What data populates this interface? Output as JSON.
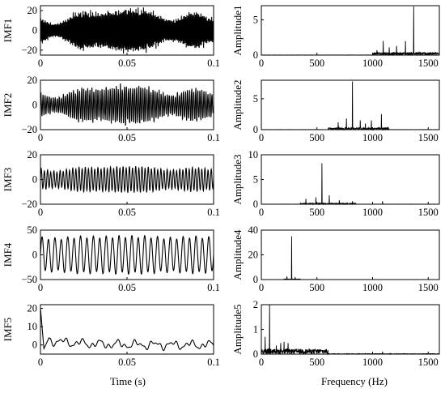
{
  "chart_data": [
    {
      "type": "line",
      "id": "imf1",
      "ylabel": "IMF1",
      "xlim": [
        0,
        0.1
      ],
      "ylim": [
        -25,
        25
      ],
      "xticks": [
        "0",
        "0.05",
        "0.1"
      ],
      "xtick_values": [
        0,
        0.05,
        0.1
      ],
      "yticks": [
        "20",
        "0",
        "−20"
      ],
      "ytick_values": [
        20,
        0,
        -20
      ],
      "signal": {
        "amplitude": 20,
        "cycles": 160,
        "modulation": 0.7,
        "dense": true
      },
      "series": [
        {
          "values": []
        }
      ]
    },
    {
      "type": "line",
      "id": "amp1",
      "ylabel": "Amplitude1",
      "xlim": [
        0,
        1600
      ],
      "ylim": [
        0,
        7
      ],
      "xticks": [
        "0",
        "500",
        "1000",
        "1500"
      ],
      "xtick_values": [
        0,
        500,
        1000,
        1500
      ],
      "yticks": [
        "5",
        "0"
      ],
      "ytick_values": [
        5,
        0
      ],
      "series": [
        {
          "peaks": [
            [
              1370,
              6.9
            ],
            [
              1095,
              2.0
            ],
            [
              1295,
              2.0
            ],
            [
              1215,
              1.3
            ],
            [
              1150,
              1.1
            ],
            [
              1040,
              0.7
            ]
          ],
          "floor": [
            1000,
            1600,
            0.4
          ]
        }
      ]
    },
    {
      "type": "line",
      "id": "imf2",
      "ylabel": "IMF2",
      "xlim": [
        0,
        0.1
      ],
      "ylim": [
        -20,
        20
      ],
      "xticks": [
        "0",
        "0.05",
        "0.1"
      ],
      "xtick_values": [
        0,
        0.05,
        0.1
      ],
      "yticks": [
        "20",
        "0",
        "−20"
      ],
      "ytick_values": [
        20,
        0,
        -20
      ],
      "signal": {
        "amplitude": 14,
        "cycles": 85,
        "modulation": 0.6,
        "dense": true
      },
      "series": [
        {
          "values": []
        }
      ]
    },
    {
      "type": "line",
      "id": "amp2",
      "ylabel": "Amplitude2",
      "xlim": [
        0,
        1600
      ],
      "ylim": [
        0,
        8
      ],
      "xticks": [
        "0",
        "500",
        "1000",
        "1500"
      ],
      "xtick_values": [
        0,
        500,
        1000,
        1500
      ],
      "yticks": [
        "5",
        "0"
      ],
      "ytick_values": [
        5,
        0
      ],
      "series": [
        {
          "peaks": [
            [
              820,
              7.8
            ],
            [
              1080,
              2.5
            ],
            [
              765,
              1.8
            ],
            [
              890,
              1.5
            ],
            [
              690,
              1.2
            ],
            [
              990,
              1.5
            ],
            [
              935,
              1.0
            ]
          ],
          "floor": [
            600,
            1150,
            0.3
          ]
        }
      ]
    },
    {
      "type": "line",
      "id": "imf3",
      "ylabel": "IMF3",
      "xlim": [
        0,
        0.1
      ],
      "ylim": [
        -20,
        20
      ],
      "xticks": [
        "0",
        "0.05",
        "0.1"
      ],
      "xtick_values": [
        0,
        0.05,
        0.1
      ],
      "yticks": [
        "20",
        "0",
        "−20"
      ],
      "ytick_values": [
        20,
        0,
        -20
      ],
      "signal": {
        "amplitude": 10,
        "cycles": 55,
        "modulation": 0.35,
        "dense": false
      },
      "series": [
        {
          "values": []
        }
      ]
    },
    {
      "type": "line",
      "id": "amp3",
      "ylabel": "Amplitude3",
      "xlim": [
        0,
        1600
      ],
      "ylim": [
        0,
        10
      ],
      "xticks": [
        "0",
        "500",
        "1000",
        "1500"
      ],
      "xtick_values": [
        0,
        500,
        1000,
        1500
      ],
      "yticks": [
        "10",
        "5",
        "0"
      ],
      "ytick_values": [
        10,
        5,
        0
      ],
      "series": [
        {
          "peaks": [
            [
              545,
              8.3
            ],
            [
              400,
              1.1
            ],
            [
              490,
              1.4
            ],
            [
              610,
              1.8
            ],
            [
              700,
              0.8
            ],
            [
              820,
              0.6
            ],
            [
              1090,
              0.6
            ]
          ],
          "floor": [
            350,
            850,
            0.2
          ]
        }
      ]
    },
    {
      "type": "line",
      "id": "imf4",
      "ylabel": "IMF4",
      "xlim": [
        0,
        0.1
      ],
      "ylim": [
        -50,
        50
      ],
      "xticks": [
        "0",
        "0.05",
        "0.1"
      ],
      "xtick_values": [
        0,
        0.05,
        0.1
      ],
      "yticks": [
        "50",
        "0",
        "−50"
      ],
      "ytick_values": [
        50,
        0,
        -50
      ],
      "signal": {
        "amplitude": 37,
        "cycles": 27,
        "modulation": 0.12,
        "dense": false
      },
      "series": [
        {
          "values": []
        }
      ]
    },
    {
      "type": "line",
      "id": "amp4",
      "ylabel": "Amplitude4",
      "xlim": [
        0,
        1600
      ],
      "ylim": [
        0,
        40
      ],
      "xticks": [
        "0",
        "500",
        "1000",
        "1500"
      ],
      "xtick_values": [
        0,
        500,
        1000,
        1500
      ],
      "yticks": [
        "40",
        "20",
        "0"
      ],
      "ytick_values": [
        40,
        20,
        0
      ],
      "series": [
        {
          "peaks": [
            [
              272,
              35
            ],
            [
              230,
              2.5
            ],
            [
              305,
              2.0
            ]
          ],
          "floor": [
            200,
            350,
            0.5
          ]
        }
      ]
    },
    {
      "type": "line",
      "id": "imf5",
      "ylabel": "IMF5",
      "xlim": [
        0,
        0.1
      ],
      "ylim": [
        -5,
        22
      ],
      "xticks": [
        "0",
        "0.05",
        "0.1"
      ],
      "xtick_values": [
        0,
        0.05,
        0.1
      ],
      "yticks": [
        "20",
        "10",
        "0"
      ],
      "ytick_values": [
        20,
        10,
        0
      ],
      "signal": {
        "type": "transient"
      },
      "series": [
        {
          "values": []
        }
      ]
    },
    {
      "type": "line",
      "id": "amp5",
      "ylabel": "Amplitude5",
      "xlim": [
        0,
        1600
      ],
      "ylim": [
        0,
        2
      ],
      "xticks": [
        "0",
        "500",
        "1000",
        "1500"
      ],
      "xtick_values": [
        0,
        500,
        1000,
        1500
      ],
      "yticks": [
        "2",
        "1",
        "0"
      ],
      "ytick_values": [
        2,
        1,
        0
      ],
      "series": [
        {
          "peaks": [
            [
              75,
              2.0
            ],
            [
              35,
              0.7
            ],
            [
              135,
              0.35
            ],
            [
              175,
              0.45
            ],
            [
              205,
              0.5
            ],
            [
              240,
              0.45
            ],
            [
              1090,
              0.1
            ]
          ],
          "floor": [
            0,
            600,
            0.2
          ]
        }
      ]
    }
  ],
  "xlabel_left": "Time (s)",
  "xlabel_right": "Frequency (Hz)"
}
